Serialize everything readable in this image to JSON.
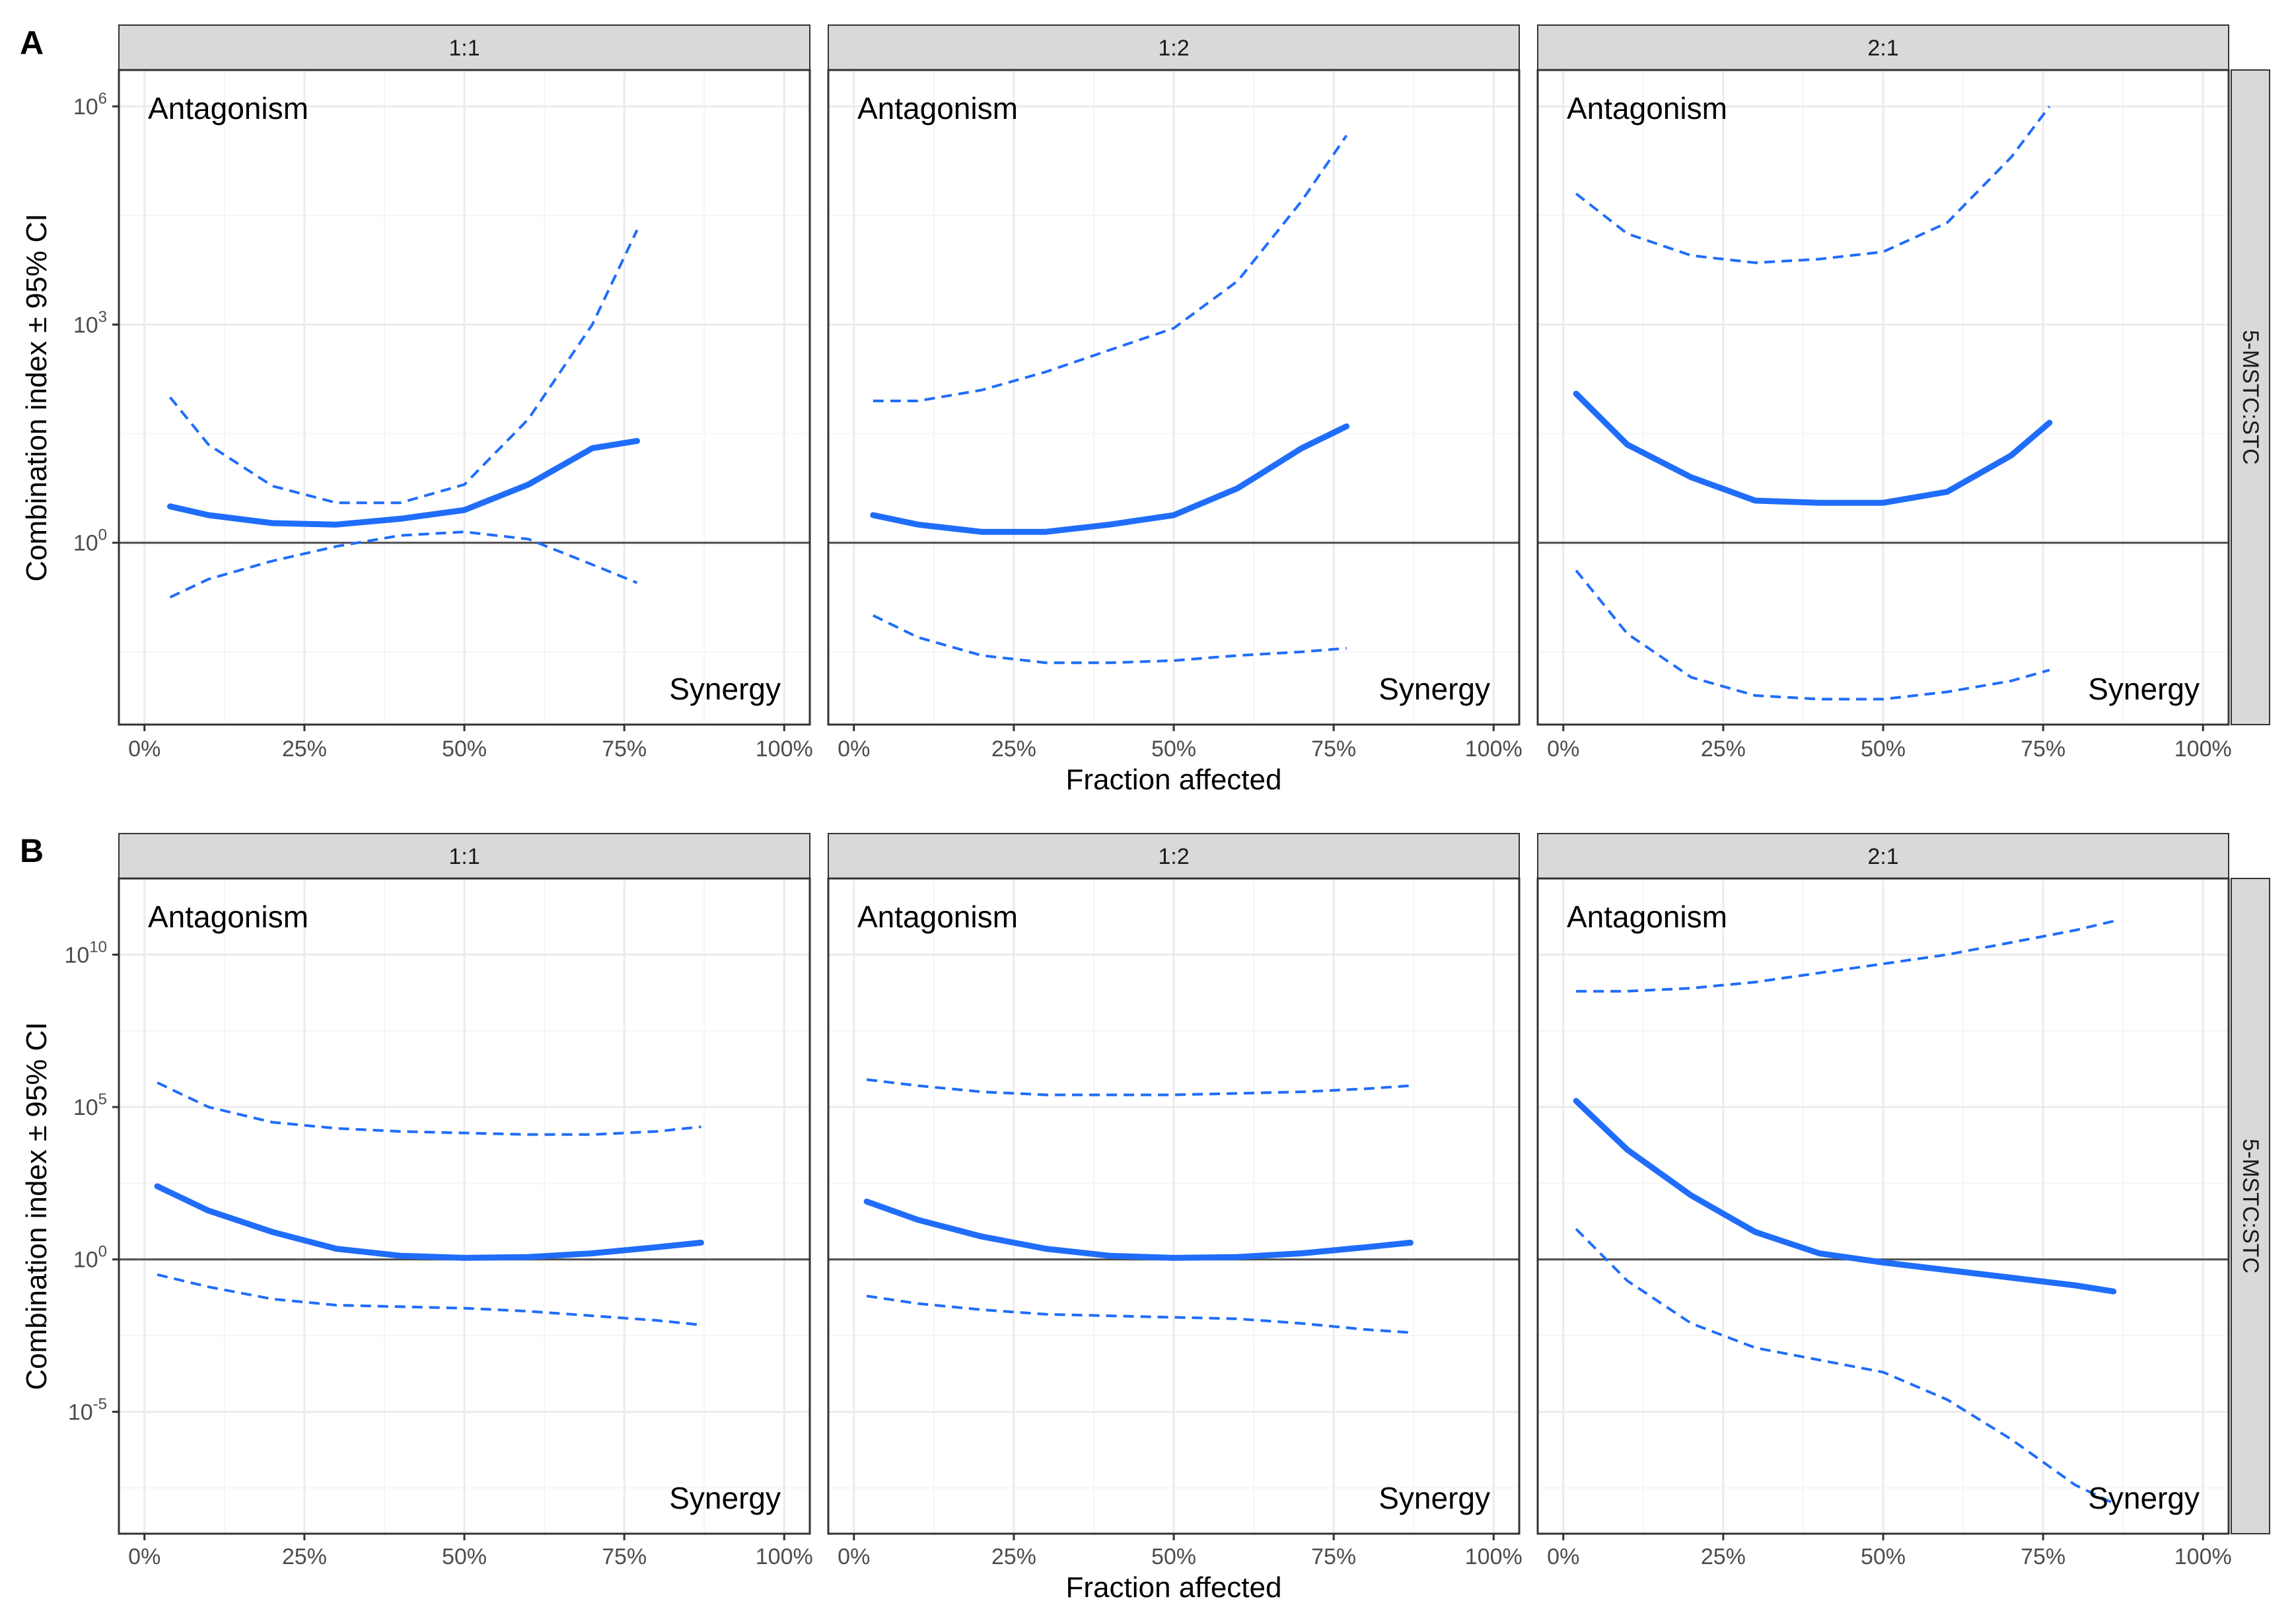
{
  "figure": {
    "x_axis_label": "Fraction affected",
    "y_axis_label": "Combination index ± 95% CI",
    "row_strip_label": "5-MSTC:STC",
    "region_labels": {
      "top": "Antagonism",
      "bottom": "Synergy"
    }
  },
  "colors": {
    "series": "#1f6dfa",
    "strip_fill": "#d9d9d9",
    "grid_major": "#ebebeb",
    "grid_minor": "#f5f5f5",
    "reference_line": "#4d4d4d",
    "panel_border": "#333333"
  },
  "chart_data": [
    {
      "panel_label": "A",
      "type": "line",
      "xlabel": "Fraction affected",
      "ylabel": "Combination index ± 95% CI",
      "y_scale": "log10",
      "xlim": [
        -0.04,
        1.04
      ],
      "ylim_log10": [
        -2.5,
        6.5
      ],
      "x_ticks": [
        0,
        0.25,
        0.5,
        0.75,
        1.0
      ],
      "x_tick_labels": [
        "0%",
        "25%",
        "50%",
        "75%",
        "100%"
      ],
      "y_ticks_log10": [
        0,
        3,
        6
      ],
      "y_tick_labels": [
        {
          "base": "10",
          "exp": "0"
        },
        {
          "base": "10",
          "exp": "3"
        },
        {
          "base": "10",
          "exp": "6"
        }
      ],
      "reference_line": 1,
      "facets": [
        {
          "label": "1:1",
          "x": [
            0.04,
            0.1,
            0.2,
            0.3,
            0.4,
            0.5,
            0.6,
            0.7,
            0.77
          ],
          "ci_log10": [
            0.5,
            0.38,
            0.27,
            0.25,
            0.33,
            0.45,
            0.8,
            1.3,
            1.4
          ],
          "lower_log10": [
            -0.75,
            -0.5,
            -0.25,
            -0.05,
            0.1,
            0.15,
            0.05,
            -0.3,
            -0.55
          ],
          "upper_log10": [
            2.0,
            1.35,
            0.78,
            0.55,
            0.55,
            0.8,
            1.7,
            3.0,
            4.3
          ]
        },
        {
          "label": "1:2",
          "x": [
            0.03,
            0.1,
            0.2,
            0.3,
            0.4,
            0.5,
            0.6,
            0.7,
            0.77
          ],
          "ci_log10": [
            0.38,
            0.25,
            0.15,
            0.15,
            0.25,
            0.38,
            0.75,
            1.3,
            1.6
          ],
          "lower_log10": [
            -1.0,
            -1.3,
            -1.55,
            -1.65,
            -1.65,
            -1.62,
            -1.55,
            -1.5,
            -1.45
          ],
          "upper_log10": [
            1.95,
            1.95,
            2.1,
            2.35,
            2.65,
            2.95,
            3.6,
            4.7,
            5.6
          ]
        },
        {
          "label": "2:1",
          "x": [
            0.02,
            0.1,
            0.2,
            0.3,
            0.4,
            0.5,
            0.6,
            0.7,
            0.76
          ],
          "ci_log10": [
            2.05,
            1.35,
            0.9,
            0.58,
            0.55,
            0.55,
            0.7,
            1.2,
            1.65
          ],
          "lower_log10": [
            -0.38,
            -1.25,
            -1.85,
            -2.1,
            -2.15,
            -2.15,
            -2.05,
            -1.9,
            -1.75
          ],
          "upper_log10": [
            4.8,
            4.25,
            3.95,
            3.85,
            3.9,
            4.0,
            4.4,
            5.3,
            6.0
          ]
        }
      ]
    },
    {
      "panel_label": "B",
      "type": "line",
      "xlabel": "Fraction affected",
      "ylabel": "Combination index ± 95% CI",
      "y_scale": "log10",
      "xlim": [
        -0.04,
        1.04
      ],
      "ylim_log10": [
        -9,
        12.5
      ],
      "x_ticks": [
        0,
        0.25,
        0.5,
        0.75,
        1.0
      ],
      "x_tick_labels": [
        "0%",
        "25%",
        "50%",
        "75%",
        "100%"
      ],
      "y_ticks_log10": [
        -5,
        0,
        5,
        10
      ],
      "y_tick_labels": [
        {
          "base": "10",
          "exp": "-5"
        },
        {
          "base": "10",
          "exp": "0"
        },
        {
          "base": "10",
          "exp": "5"
        },
        {
          "base": "10",
          "exp": "10"
        }
      ],
      "reference_line": 1,
      "facets": [
        {
          "label": "1:1",
          "x": [
            0.02,
            0.1,
            0.2,
            0.3,
            0.4,
            0.5,
            0.6,
            0.7,
            0.8,
            0.87
          ],
          "ci_log10": [
            2.4,
            1.6,
            0.9,
            0.35,
            0.12,
            0.05,
            0.08,
            0.2,
            0.4,
            0.55
          ],
          "lower_log10": [
            -0.5,
            -0.9,
            -1.3,
            -1.5,
            -1.55,
            -1.6,
            -1.7,
            -1.85,
            -2.0,
            -2.15
          ],
          "upper_log10": [
            5.8,
            5.0,
            4.5,
            4.3,
            4.2,
            4.15,
            4.1,
            4.1,
            4.2,
            4.35
          ]
        },
        {
          "label": "1:2",
          "x": [
            0.02,
            0.1,
            0.2,
            0.3,
            0.4,
            0.5,
            0.6,
            0.7,
            0.8,
            0.87
          ],
          "ci_log10": [
            1.9,
            1.3,
            0.75,
            0.35,
            0.12,
            0.05,
            0.08,
            0.2,
            0.4,
            0.55
          ],
          "lower_log10": [
            -1.2,
            -1.45,
            -1.65,
            -1.8,
            -1.85,
            -1.9,
            -1.95,
            -2.1,
            -2.3,
            -2.4
          ],
          "upper_log10": [
            5.9,
            5.7,
            5.5,
            5.4,
            5.4,
            5.4,
            5.45,
            5.5,
            5.6,
            5.7
          ]
        },
        {
          "label": "2:1",
          "x": [
            0.02,
            0.1,
            0.2,
            0.3,
            0.4,
            0.5,
            0.6,
            0.7,
            0.8,
            0.86
          ],
          "ci_log10": [
            5.2,
            3.6,
            2.1,
            0.9,
            0.2,
            -0.1,
            -0.35,
            -0.6,
            -0.85,
            -1.05
          ],
          "lower_log10": [
            1.0,
            -0.7,
            -2.1,
            -2.9,
            -3.3,
            -3.7,
            -4.6,
            -5.9,
            -7.4,
            -8.0
          ],
          "upper_log10": [
            8.8,
            8.8,
            8.9,
            9.1,
            9.4,
            9.7,
            10.0,
            10.4,
            10.8,
            11.1
          ]
        }
      ]
    }
  ]
}
